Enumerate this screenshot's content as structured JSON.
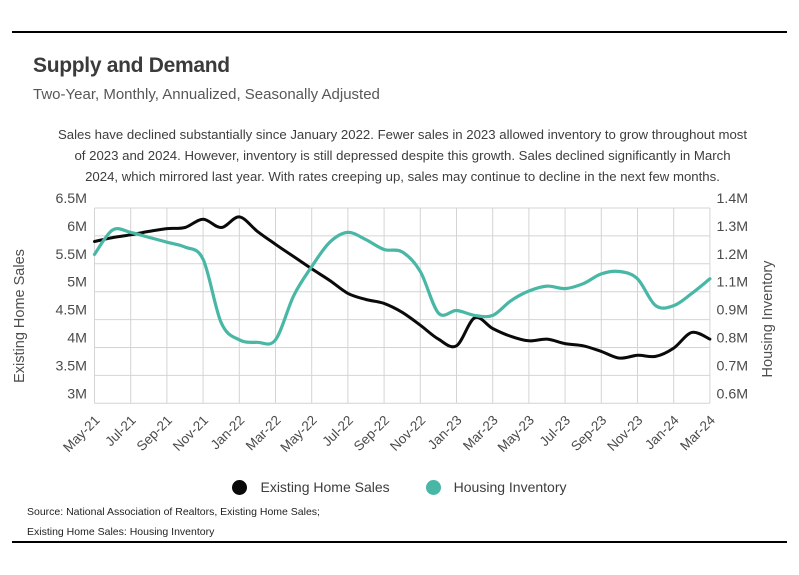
{
  "header": {
    "title": "Supply and Demand",
    "subtitle": "Two-Year, Monthly, Annualized, Seasonally Adjusted"
  },
  "annotation": {
    "lines": [
      "Sales have declined substantially since January 2022. Fewer sales in 2023 allowed inventory to grow throughout most",
      "of 2023 and 2024. However, inventory is still depressed despite this growth. Sales declined significantly in March",
      "2024, which mirrored last year. With rates creeping up, sales may continue to decline in the next few months."
    ]
  },
  "legend": {
    "items": [
      {
        "label": "Existing Home Sales",
        "color": "#0a0a0a"
      },
      {
        "label": "Housing Inventory",
        "color": "#49b7a5"
      }
    ]
  },
  "source": {
    "line1": "Source:  National Association of Realtors, Existing Home Sales;",
    "line2": "Existing Home Sales: Housing Inventory"
  },
  "chart_data": {
    "type": "line",
    "title": "Supply and Demand",
    "subtitle": "Two-Year, Monthly, Annualized, Seasonally Adjusted",
    "x": [
      "May-21",
      "Jun-21",
      "Jul-21",
      "Aug-21",
      "Sep-21",
      "Oct-21",
      "Nov-21",
      "Dec-21",
      "Jan-22",
      "Feb-22",
      "Mar-22",
      "Apr-22",
      "May-22",
      "Jun-22",
      "Jul-22",
      "Aug-22",
      "Sep-22",
      "Oct-22",
      "Nov-22",
      "Dec-22",
      "Jan-23",
      "Feb-23",
      "Mar-23",
      "Apr-23",
      "May-23",
      "Jun-23",
      "Jul-23",
      "Aug-23",
      "Sep-23",
      "Oct-23",
      "Nov-23",
      "Dec-23",
      "Jan-24",
      "Feb-24",
      "Mar-24"
    ],
    "x_tick_labels": [
      "May-21",
      "Jul-21",
      "Sep-21",
      "Nov-21",
      "Jan-22",
      "Mar-22",
      "May-22",
      "Jul-22",
      "Sep-22",
      "Nov-22",
      "Jan-23",
      "Mar-23",
      "May-23",
      "Jul-23",
      "Sep-23",
      "Nov-23",
      "Jan-24",
      "Mar-24"
    ],
    "series": [
      {
        "name": "Existing Home Sales",
        "axis": "left",
        "color": "#0a0a0a",
        "values": [
          5.9,
          5.97,
          6.02,
          6.08,
          6.13,
          6.15,
          6.3,
          6.15,
          6.34,
          6.08,
          5.85,
          5.63,
          5.41,
          5.2,
          4.97,
          4.86,
          4.79,
          4.63,
          4.4,
          4.15,
          4.03,
          4.53,
          4.34,
          4.2,
          4.12,
          4.15,
          4.07,
          4.03,
          3.93,
          3.81,
          3.86,
          3.84,
          3.99,
          4.27,
          4.15
        ]
      },
      {
        "name": "Housing Inventory",
        "axis": "right",
        "color": "#49b7a5",
        "values": [
          1.21,
          1.31,
          1.3,
          1.28,
          1.26,
          1.24,
          1.19,
          0.93,
          0.86,
          0.85,
          0.86,
          1.04,
          1.16,
          1.26,
          1.3,
          1.27,
          1.23,
          1.22,
          1.14,
          0.97,
          0.98,
          0.96,
          0.96,
          1.02,
          1.06,
          1.08,
          1.07,
          1.09,
          1.13,
          1.14,
          1.11,
          1.0,
          1.0,
          1.05,
          1.11
        ]
      }
    ],
    "left_axis": {
      "title": "Existing Home Sales",
      "min": 3.0,
      "max": 6.5,
      "tick_labels": [
        "6.5M",
        "6M",
        "5.5M",
        "5M",
        "4.5M",
        "4M",
        "3.5M",
        "3M"
      ]
    },
    "right_axis": {
      "title": "Housing Inventory",
      "min": 0.6,
      "max": 1.4,
      "tick_labels": [
        "1.4M",
        "1.3M",
        "1.2M",
        "1.1M",
        "0.9M",
        "0.8M",
        "0.7M",
        "0.6M"
      ]
    },
    "grid": true,
    "legend_position": "bottom",
    "grid_color": "#d4d4d4"
  }
}
